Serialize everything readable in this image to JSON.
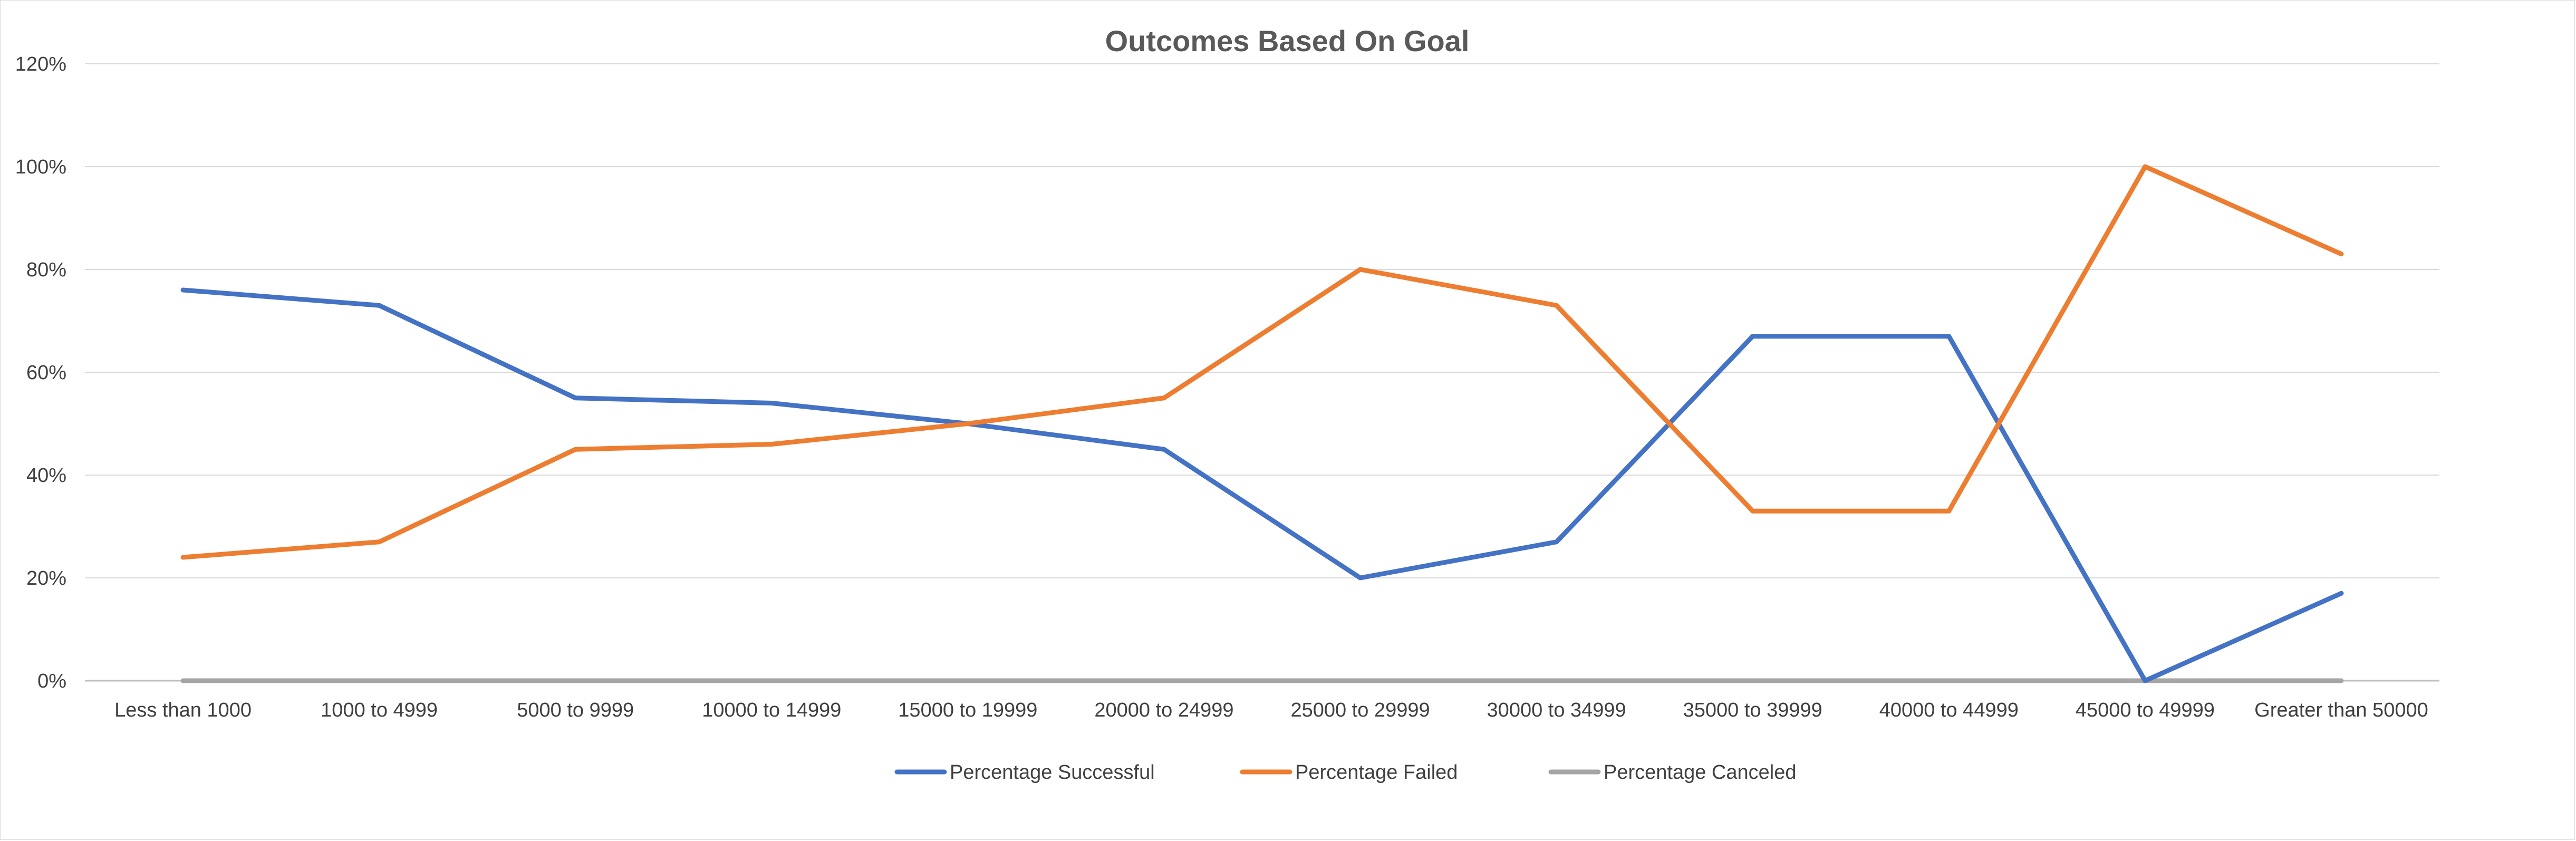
{
  "chart_data": {
    "type": "line",
    "title": "Outcomes Based On Goal",
    "xlabel": "",
    "ylabel": "",
    "categories": [
      "Less than 1000",
      "1000 to 4999",
      "5000 to 9999",
      "10000 to 14999",
      "15000 to 19999",
      "20000 to 24999",
      "25000 to 29999",
      "30000 to 34999",
      "35000 to 39999",
      "40000 to 44999",
      "45000 to 49999",
      "Greater than 50000"
    ],
    "y_ticks": [
      "0%",
      "20%",
      "40%",
      "60%",
      "80%",
      "100%",
      "120%"
    ],
    "ylim": [
      0,
      120
    ],
    "grid": "horizontal",
    "legend_position": "bottom",
    "series": [
      {
        "name": "Percentage Successful",
        "color": "#4472C4",
        "values": [
          76,
          73,
          55,
          54,
          50,
          45,
          20,
          27,
          67,
          67,
          0,
          17
        ]
      },
      {
        "name": "Percentage Failed",
        "color": "#ED7D31",
        "values": [
          24,
          27,
          45,
          46,
          50,
          55,
          80,
          73,
          33,
          33,
          100,
          83
        ]
      },
      {
        "name": "Percentage Canceled",
        "color": "#A5A5A5",
        "values": [
          0,
          0,
          0,
          0,
          0,
          0,
          0,
          0,
          0,
          0,
          0,
          0
        ]
      }
    ]
  }
}
